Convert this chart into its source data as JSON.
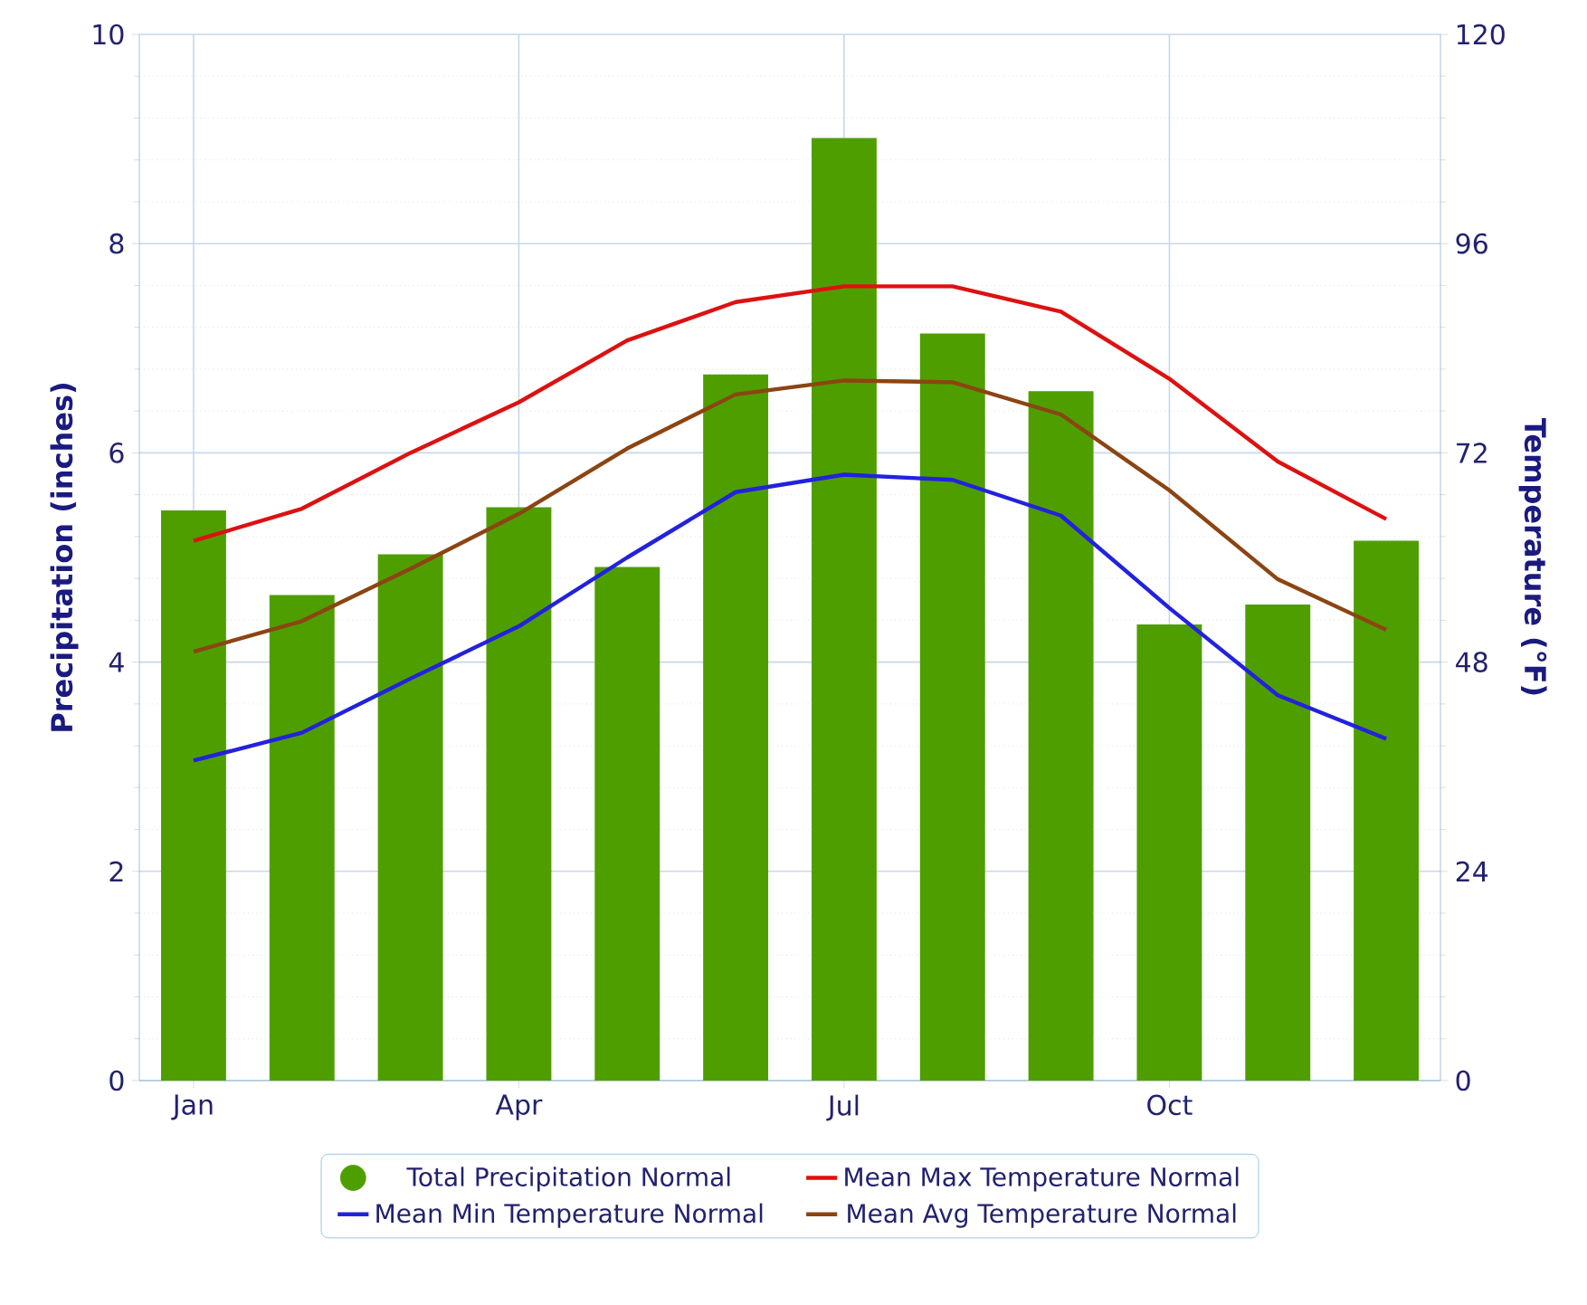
{
  "chart_data": {
    "type": "bar",
    "categories": [
      "Jan",
      null,
      null,
      "Apr",
      null,
      null,
      "Jul",
      null,
      null,
      "Oct",
      null,
      null
    ],
    "ylabel": "Precipitation (inches)",
    "y2label": "Temperature (°F)",
    "ylim": [
      0,
      10
    ],
    "yticks": [
      0,
      2,
      4,
      6,
      8,
      10
    ],
    "y2lim": [
      0,
      120
    ],
    "y2ticks": [
      0,
      24,
      48,
      72,
      96,
      120
    ],
    "grid": true,
    "legend": "bottom",
    "series": [
      {
        "name": "Total Precipitation Normal",
        "color": "#4f9e00",
        "values": [
          5.45,
          4.64,
          5.03,
          5.48,
          4.91,
          6.75,
          9.01,
          7.14,
          6.59,
          4.36,
          4.55,
          5.16
        ]
      },
      {
        "name": "Mean Max Temperature Normal",
        "type": "line",
        "axis": "y2",
        "color": "#dd1111",
        "values": [
          61.9,
          65.6,
          72.0,
          77.8,
          84.9,
          89.3,
          91.1,
          91.1,
          88.2,
          80.5,
          71.0,
          64.4
        ]
      },
      {
        "name": "Mean Min Temperature Normal",
        "type": "line",
        "axis": "y2",
        "color": "#2222dd",
        "values": [
          36.7,
          39.9,
          46.1,
          52.1,
          60.0,
          67.5,
          69.5,
          68.9,
          64.8,
          54.2,
          44.2,
          39.2
        ]
      },
      {
        "name": "Mean Avg Temperature Normal",
        "type": "line",
        "axis": "y2",
        "color": "#8b4513",
        "values": [
          49.2,
          52.7,
          58.7,
          65.0,
          72.5,
          78.7,
          80.3,
          80.1,
          76.4,
          67.7,
          57.5,
          51.7
        ]
      }
    ]
  }
}
